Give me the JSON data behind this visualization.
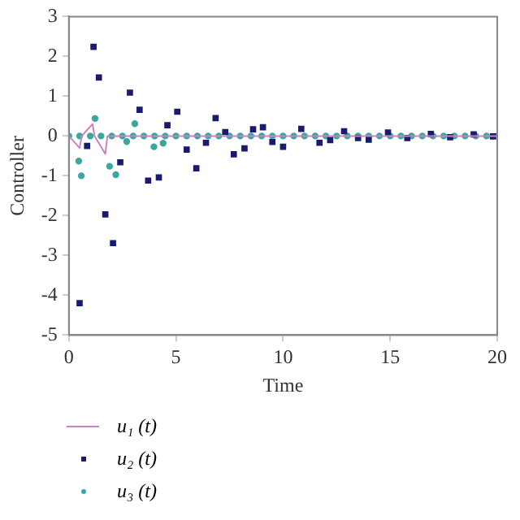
{
  "chart_data": {
    "type": "scatter",
    "xlabel": "Time",
    "ylabel": "Controller",
    "xlim": [
      0,
      20
    ],
    "xticks": [
      0,
      5,
      10,
      15,
      20
    ],
    "ylim": [
      -5,
      3
    ],
    "yticks": [
      -5,
      -4,
      -3,
      -2,
      -1,
      0,
      1,
      2,
      3
    ],
    "grid": false,
    "legend": "bottom",
    "series": [
      {
        "name": "u₁ (t)",
        "type": "line",
        "color": "#d080c0",
        "marker": "none",
        "x": [
          0,
          0.5,
          0.6,
          1.1,
          1.2,
          1.7,
          1.8,
          20
        ],
        "values": [
          0,
          -0.3,
          0,
          0.3,
          0,
          -0.45,
          0,
          0
        ]
      },
      {
        "name": "u₂ (t)",
        "color": "#1a1a6e",
        "marker": "square",
        "x": [
          0.5,
          0.85,
          1.15,
          1.4,
          1.7,
          2.06,
          2.4,
          2.85,
          3.3,
          3.7,
          4.2,
          4.6,
          5.06,
          5.5,
          5.95,
          6.4,
          6.85,
          7.3,
          7.7,
          8.2,
          8.6,
          9.06,
          9.5,
          10,
          10.85,
          11.7,
          12.2,
          12.85,
          13.5,
          14,
          14.9,
          15.8,
          16.9,
          17.8,
          18.9,
          19.8
        ],
        "values": [
          -4.2,
          -0.25,
          2.24,
          1.47,
          -1.97,
          -2.69,
          -0.66,
          1.09,
          0.66,
          -1.12,
          -1.04,
          0.27,
          0.61,
          -0.34,
          -0.81,
          -0.17,
          0.45,
          0.1,
          -0.46,
          -0.31,
          0.17,
          0.22,
          -0.15,
          -0.27,
          0.18,
          -0.17,
          -0.1,
          0.12,
          -0.05,
          -0.09,
          0.09,
          -0.05,
          0.05,
          -0.03,
          0.04,
          -0.01
        ]
      },
      {
        "name": "u₃ (t)",
        "color": "#3aa8a0",
        "marker": "circle",
        "x": [
          0.46,
          0.58,
          1.22,
          1.9,
          2.19,
          2.7,
          3.08,
          3.97,
          4.4,
          0,
          0.5,
          1,
          1.5,
          2,
          2.5,
          3,
          3.5,
          4,
          4.5,
          5,
          5.5,
          6,
          6.5,
          7,
          7.5,
          8,
          8.5,
          9,
          9.5,
          10,
          10.5,
          11,
          11.5,
          12,
          12.5,
          13,
          13.5,
          14,
          14.5,
          15,
          15.5,
          16,
          16.5,
          17,
          17.5,
          18,
          18.5,
          19,
          19.5,
          20
        ],
        "values": [
          -0.63,
          -1.0,
          0.44,
          -0.76,
          -0.97,
          -0.14,
          0.31,
          -0.27,
          -0.18,
          0,
          0,
          0,
          0,
          0,
          0,
          0,
          0,
          0,
          0,
          0,
          0,
          0,
          0,
          0,
          0,
          0,
          0,
          0,
          0,
          0,
          0,
          0,
          0,
          0,
          0,
          0,
          0,
          0,
          0,
          0,
          0,
          0,
          0,
          0,
          0,
          0,
          0,
          0,
          0,
          0
        ]
      }
    ]
  }
}
